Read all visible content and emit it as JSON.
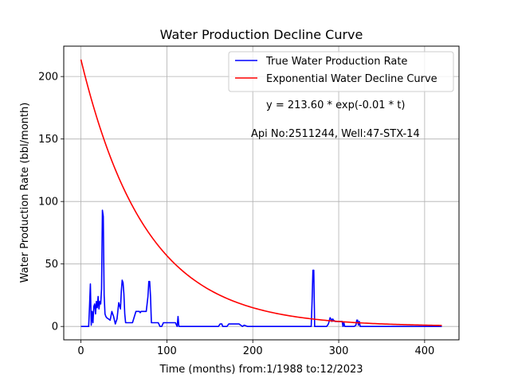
{
  "chart_data": {
    "type": "line",
    "title": "Water Production Decline Curve",
    "xlabel": "Time (months) from:1/1988 to:12/2023",
    "ylabel": "Water Production Rate (bbl/month)",
    "xlim": [
      -20,
      440
    ],
    "ylim": [
      -10.7,
      224.3
    ],
    "xticks": [
      0,
      100,
      200,
      300,
      400
    ],
    "yticks": [
      0,
      50,
      100,
      150,
      200
    ],
    "grid": true,
    "legend_position": "top-right",
    "annotations": {
      "equation": "y = 213.60 * exp(-0.01 * t)",
      "well": "Api No:2511244, Well:47-STX-14"
    },
    "series": [
      {
        "name": "True Water Production Rate",
        "color": "#0000ff",
        "x": [
          0,
          9,
          10,
          11,
          12,
          13,
          14,
          15,
          16,
          17,
          18,
          19,
          20,
          21,
          22,
          23,
          24,
          25,
          26,
          27,
          28,
          29,
          30,
          32,
          34,
          36,
          38,
          40,
          42,
          44,
          46,
          47,
          48,
          49,
          50,
          51,
          52,
          53,
          54,
          56,
          60,
          64,
          68,
          69,
          70,
          72,
          74,
          76,
          78,
          79,
          80,
          81,
          82,
          83,
          84,
          88,
          90,
          92,
          94,
          96,
          98,
          100,
          104,
          108,
          110,
          112,
          113,
          114,
          115,
          116,
          120,
          140,
          160,
          162,
          163,
          164,
          165,
          166,
          170,
          172,
          173,
          180,
          184,
          186,
          188,
          190,
          194,
          196,
          200,
          260,
          266,
          268,
          269,
          270,
          271,
          272,
          274,
          280,
          286,
          288,
          290,
          291,
          292,
          293,
          294,
          296,
          300,
          304,
          305,
          306,
          307,
          308,
          310,
          314,
          318,
          320,
          321,
          322,
          323,
          324,
          325,
          326,
          328,
          330,
          334,
          340,
          360,
          380,
          400,
          420
        ],
        "y": [
          0,
          0,
          16,
          34,
          1,
          12,
          3,
          16,
          18,
          10,
          20,
          15,
          24,
          14,
          20,
          18,
          30,
          93,
          88,
          25,
          10,
          8,
          7,
          6,
          5,
          12,
          8,
          2,
          6,
          19,
          14,
          28,
          37,
          35,
          26,
          10,
          3,
          3,
          3,
          3,
          3,
          12,
          12,
          11,
          12,
          12,
          12,
          12,
          24,
          36,
          36,
          24,
          3,
          3,
          3,
          3,
          3,
          0,
          0,
          3,
          3,
          3,
          3,
          3,
          3,
          0,
          8,
          0,
          0,
          0,
          0,
          0,
          0,
          2,
          2,
          2,
          0,
          0,
          0,
          2,
          2,
          2,
          2,
          1,
          0,
          1,
          0,
          0,
          0,
          0,
          0,
          0,
          20,
          45,
          45,
          0,
          0,
          0,
          0,
          2,
          7,
          6,
          4,
          6,
          5,
          4,
          4,
          4,
          0,
          3,
          0,
          0,
          0,
          0,
          0,
          1,
          5,
          5,
          1,
          4,
          0,
          0,
          0,
          0,
          0,
          0,
          0,
          0,
          0,
          0
        ]
      },
      {
        "name": "Exponential Water Decline Curve",
        "color": "#ff0000",
        "model": {
          "a": 213.6,
          "b": 0.01327
        },
        "x_range": [
          0,
          420
        ]
      }
    ]
  }
}
